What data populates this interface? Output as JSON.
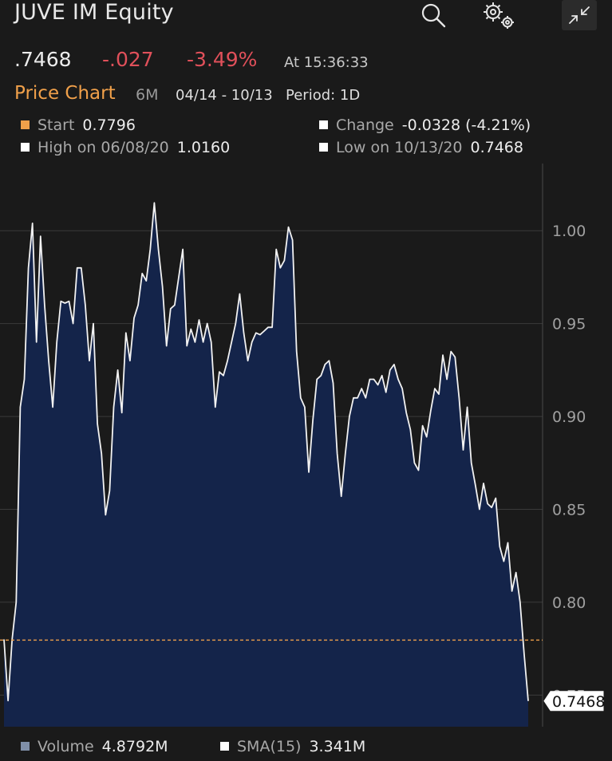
{
  "header": {
    "title": "JUVE IM Equity"
  },
  "quote": {
    "price": ".7468",
    "change": "-.027",
    "change_pct": "-3.49%",
    "as_of": "At 15:36:33"
  },
  "chart_header": {
    "title": "Price Chart",
    "range": "6M",
    "dates": "04/14 - 10/13",
    "period": "Period: 1D"
  },
  "stats": {
    "start_label": "Start",
    "start_value": "0.7796",
    "change_label": "Change",
    "change_value": "-0.0328 (-4.21%)",
    "high_label": "High on 06/08/20",
    "high_value": "1.0160",
    "low_label": "Low on 10/13/20",
    "low_value": "0.7468"
  },
  "legend": {
    "volume_label": "Volume",
    "volume_value": "4.8792M",
    "sma_label": "SMA(15)",
    "sma_value": "3.341M"
  },
  "colors": {
    "accent": "#f0a04a",
    "negative": "#e0505a",
    "area_fill": "#14244a",
    "line": "#f2f2f2",
    "start_line": "#f0a04a",
    "volume_square": "#7f8fa8"
  },
  "icons": {
    "search": "search-icon",
    "settings": "gear-icon",
    "collapse": "collapse-icon"
  },
  "chart_data": {
    "type": "area",
    "title": "Price Chart",
    "ylim": [
      0.745,
      1.025
    ],
    "yticks": [
      0.75,
      0.8,
      0.85,
      0.9,
      0.95,
      1.0
    ],
    "ytick_labels": [
      "0.75",
      "0.80",
      "0.85",
      "0.90",
      "0.95",
      "1.00"
    ],
    "grid": true,
    "start_reference": 0.7796,
    "last_value_label": "0.7468",
    "series": [
      {
        "values": [
          0.78,
          0.747,
          0.78,
          0.8,
          0.905,
          0.92,
          0.98,
          1.004,
          0.94,
          0.997,
          0.96,
          0.93,
          0.905,
          0.94,
          0.962,
          0.961,
          0.962,
          0.95,
          0.98,
          0.98,
          0.96,
          0.93,
          0.95,
          0.896,
          0.88,
          0.847,
          0.86,
          0.905,
          0.925,
          0.902,
          0.945,
          0.93,
          0.953,
          0.96,
          0.977,
          0.973,
          0.99,
          1.015,
          0.99,
          0.97,
          0.938,
          0.958,
          0.96,
          0.975,
          0.99,
          0.938,
          0.947,
          0.94,
          0.952,
          0.94,
          0.95,
          0.94,
          0.905,
          0.924,
          0.922,
          0.93,
          0.94,
          0.95,
          0.966,
          0.945,
          0.93,
          0.94,
          0.945,
          0.944,
          0.946,
          0.948,
          0.948,
          0.99,
          0.98,
          0.984,
          1.002,
          0.995,
          0.935,
          0.91,
          0.905,
          0.87,
          0.898,
          0.92,
          0.922,
          0.928,
          0.93,
          0.918,
          0.88,
          0.857,
          0.88,
          0.9,
          0.91,
          0.91,
          0.915,
          0.91,
          0.92,
          0.92,
          0.917,
          0.922,
          0.913,
          0.925,
          0.928,
          0.92,
          0.915,
          0.902,
          0.893,
          0.875,
          0.871,
          0.895,
          0.889,
          0.903,
          0.915,
          0.912,
          0.933,
          0.92,
          0.935,
          0.932,
          0.91,
          0.882,
          0.905,
          0.875,
          0.863,
          0.85,
          0.864,
          0.853,
          0.851,
          0.856,
          0.83,
          0.822,
          0.832,
          0.806,
          0.816,
          0.8,
          0.772,
          0.7468
        ]
      }
    ]
  }
}
